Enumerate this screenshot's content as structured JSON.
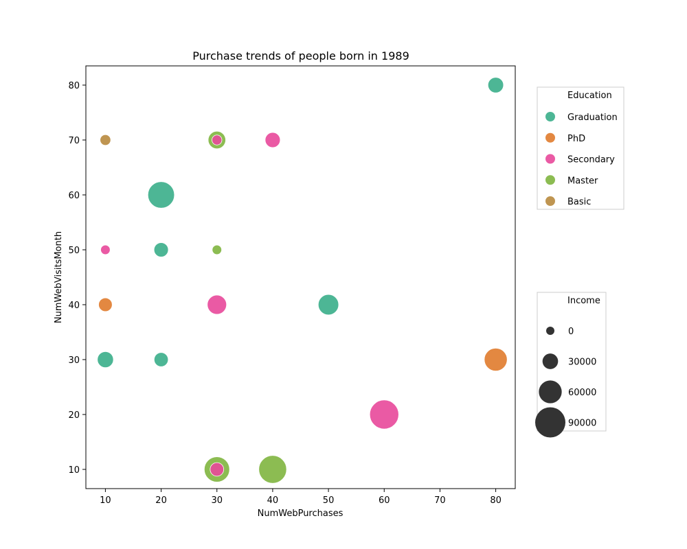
{
  "chart_data": {
    "type": "scatter",
    "title": "Purchase trends of people born in 1989",
    "xlabel": "NumWebPurchases",
    "ylabel": "NumWebVisitsMonth",
    "xlim": [
      6.5,
      83.5
    ],
    "ylim": [
      6.5,
      83.5
    ],
    "xticks": [
      10,
      20,
      30,
      40,
      50,
      60,
      70,
      80
    ],
    "yticks": [
      10,
      20,
      30,
      40,
      50,
      60,
      70,
      80
    ],
    "grid": false,
    "hue_legend": {
      "title": "Education",
      "placement": "upper right, outside plot",
      "entries": [
        {
          "label": "Graduation",
          "color": "#3aae8a"
        },
        {
          "label": "PhD",
          "color": "#e07b2c"
        },
        {
          "label": "Secondary",
          "color": "#e8489a"
        },
        {
          "label": "Master",
          "color": "#7fb53f"
        },
        {
          "label": "Basic",
          "color": "#b8893e"
        }
      ]
    },
    "size_legend": {
      "title": "Income",
      "placement": "lower right, outside plot",
      "entries": [
        {
          "label": "0",
          "value": 0
        },
        {
          "label": "30000",
          "value": 30000
        },
        {
          "label": "60000",
          "value": 60000
        },
        {
          "label": "90000",
          "value": 90000
        }
      ]
    },
    "size_scale": {
      "min_diameter": 12,
      "max_diameter": 44,
      "min_value": 0,
      "max_value": 90000
    },
    "series": [
      {
        "name": "Graduation",
        "color": "#3aae8a",
        "points": [
          {
            "x": 80,
            "y": 80,
            "income": 30000
          },
          {
            "x": 20,
            "y": 60,
            "income": 75000
          },
          {
            "x": 20,
            "y": 50,
            "income": 25000
          },
          {
            "x": 50,
            "y": 40,
            "income": 50000
          },
          {
            "x": 10,
            "y": 30,
            "income": 32000
          },
          {
            "x": 20,
            "y": 30,
            "income": 24000
          }
        ]
      },
      {
        "name": "PhD",
        "color": "#e07b2c",
        "points": [
          {
            "x": 10,
            "y": 40,
            "income": 22000
          },
          {
            "x": 80,
            "y": 30,
            "income": 60000
          }
        ]
      },
      {
        "name": "Master",
        "color": "#7fb53f",
        "points": [
          {
            "x": 30,
            "y": 70,
            "income": 38000
          },
          {
            "x": 30,
            "y": 50,
            "income": 5000
          },
          {
            "x": 30,
            "y": 10,
            "income": 70000
          },
          {
            "x": 40,
            "y": 10,
            "income": 80000
          }
        ]
      },
      {
        "name": "Secondary",
        "color": "#e8489a",
        "points": [
          {
            "x": 40,
            "y": 70,
            "income": 28000
          },
          {
            "x": 30,
            "y": 70,
            "income": 7000
          },
          {
            "x": 10,
            "y": 50,
            "income": 5000
          },
          {
            "x": 30,
            "y": 40,
            "income": 45000
          },
          {
            "x": 60,
            "y": 20,
            "income": 85000
          },
          {
            "x": 30,
            "y": 10,
            "income": 22000
          }
        ]
      },
      {
        "name": "Basic",
        "color": "#b8893e",
        "points": [
          {
            "x": 10,
            "y": 70,
            "income": 10000
          }
        ]
      }
    ]
  }
}
